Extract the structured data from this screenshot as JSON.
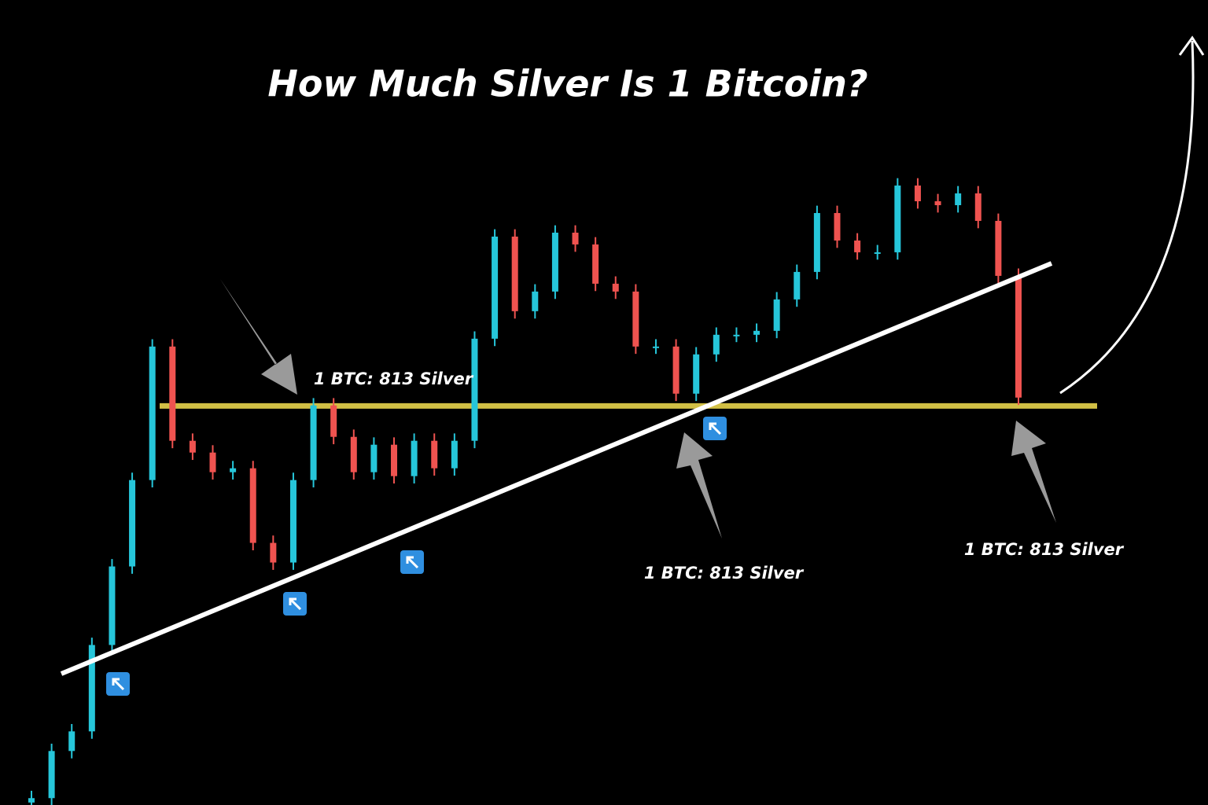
{
  "chart_data": {
    "type": "candlestick",
    "title": "How Much Silver Is 1 Bitcoin?",
    "ylim": [
      0,
      1640
    ],
    "up_color": "#26c6da",
    "down_color": "#ef5350",
    "open": [
      5,
      14,
      110,
      150,
      326,
      486,
      662,
      934,
      742,
      718,
      678,
      686,
      534,
      494,
      662,
      814,
      750,
      678,
      734,
      670,
      742,
      686,
      742,
      950,
      1158,
      1006,
      1046,
      1166,
      1142,
      1062,
      1046,
      934,
      934,
      838,
      918,
      958,
      958,
      966,
      1030,
      1086,
      1206,
      1150,
      1126,
      1126,
      1262,
      1230,
      1222,
      1246,
      1190,
      1078
    ],
    "high": [
      29,
      125,
      165,
      341,
      501,
      677,
      949,
      949,
      757,
      733,
      701,
      701,
      549,
      677,
      829,
      829,
      765,
      749,
      749,
      757,
      757,
      757,
      965,
      1173,
      1173,
      1061,
      1181,
      1181,
      1157,
      1077,
      1061,
      949,
      949,
      933,
      973,
      973,
      981,
      1045,
      1101,
      1221,
      1221,
      1165,
      1141,
      1277,
      1277,
      1245,
      1261,
      1261,
      1205,
      1093
    ],
    "low": [
      0,
      0,
      95,
      135,
      311,
      471,
      647,
      727,
      703,
      663,
      663,
      519,
      479,
      479,
      647,
      735,
      663,
      663,
      655,
      655,
      671,
      671,
      727,
      935,
      991,
      991,
      1031,
      1127,
      1047,
      1031,
      919,
      919,
      823,
      823,
      903,
      943,
      943,
      951,
      1015,
      1071,
      1135,
      1111,
      1111,
      1111,
      1215,
      1207,
      1207,
      1175,
      1063,
      815
    ],
    "close": [
      14,
      110,
      150,
      326,
      486,
      662,
      934,
      742,
      718,
      678,
      686,
      534,
      494,
      662,
      814,
      750,
      678,
      734,
      670,
      742,
      686,
      742,
      950,
      1158,
      1006,
      1046,
      1166,
      1142,
      1062,
      1046,
      934,
      934,
      838,
      918,
      958,
      958,
      966,
      1030,
      1086,
      1206,
      1150,
      1126,
      1126,
      1262,
      1230,
      1222,
      1246,
      1190,
      1078,
      830
    ],
    "level": {
      "value": 813,
      "label": "1 BTC: 813 Silver",
      "color": "#e8d44d"
    },
    "annotations": [
      "1 BTC: 813 Silver",
      "1 BTC: 813 Silver"
    ]
  }
}
